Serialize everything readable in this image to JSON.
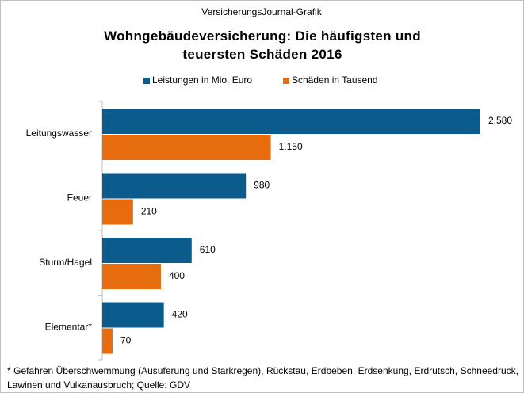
{
  "header": "VersicherungsJournal-Grafik",
  "chart_data": {
    "type": "hbar",
    "title": "Wohngebäudeversicherung:  Die häufigsten und teuersten Schäden 2016",
    "categories": [
      "Leitungswasser",
      "Feuer",
      "Sturm/Hagel",
      "Elementar*"
    ],
    "series": [
      {
        "name": "Leistungen in Mio. Euro",
        "color": "#0b5b8d",
        "values": [
          2580,
          980,
          610,
          420
        ],
        "value_labels": [
          "2.580",
          "980",
          "610",
          "420"
        ]
      },
      {
        "name": "Schäden in Tausend",
        "color": "#e66c0d",
        "values": [
          1150,
          210,
          400,
          70
        ],
        "value_labels": [
          "1.150",
          "210",
          "400",
          "70"
        ]
      }
    ],
    "legend": "top"
  },
  "footnote": "* Gefahren Überschwemmung (Ausuferung und Starkregen), Rückstau, Erdbeben, Erdsenkung, Erdrutsch, Schneedruck, Lawinen und Vulkanausbruch; Quelle: GDV"
}
